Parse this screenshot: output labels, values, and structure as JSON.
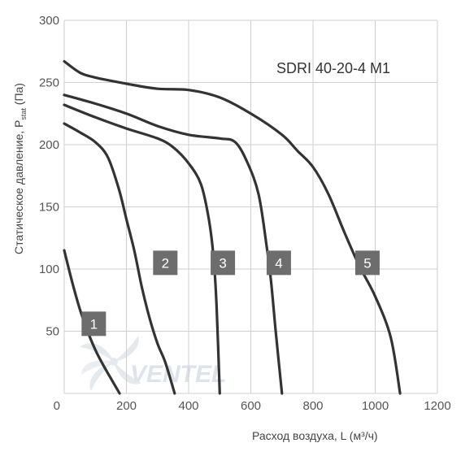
{
  "chart_data": {
    "type": "line",
    "title": "SDRI 40-20-4 M1",
    "xlabel": "Расход воздуха, L (м³/ч)",
    "ylabel": "Статическое давление, P",
    "ylabel_sub": "stat",
    "ylabel_unit": " (Па)",
    "xlim": [
      0,
      1200
    ],
    "ylim": [
      0,
      300
    ],
    "x_ticks": [
      "0",
      "200",
      "400",
      "600",
      "800",
      "1000",
      "1200"
    ],
    "y_ticks": [
      "50",
      "100",
      "150",
      "200",
      "250",
      "300"
    ],
    "grid": true,
    "series": [
      {
        "name": "1",
        "points": [
          [
            0,
            115
          ],
          [
            25,
            90
          ],
          [
            50,
            68
          ],
          [
            75,
            50
          ],
          [
            100,
            35
          ],
          [
            125,
            23
          ],
          [
            150,
            12
          ],
          [
            178,
            0
          ]
        ]
      },
      {
        "name": "2",
        "points": [
          [
            0,
            217
          ],
          [
            50,
            210
          ],
          [
            100,
            202
          ],
          [
            140,
            190
          ],
          [
            175,
            165
          ],
          [
            200,
            140
          ],
          [
            225,
            115
          ],
          [
            250,
            85
          ],
          [
            275,
            60
          ],
          [
            300,
            40
          ],
          [
            325,
            25
          ],
          [
            355,
            0
          ]
        ]
      },
      {
        "name": "3",
        "points": [
          [
            0,
            232
          ],
          [
            100,
            222
          ],
          [
            200,
            213
          ],
          [
            300,
            205
          ],
          [
            350,
            198
          ],
          [
            400,
            185
          ],
          [
            440,
            168
          ],
          [
            465,
            140
          ],
          [
            480,
            110
          ],
          [
            490,
            70
          ],
          [
            500,
            0
          ]
        ]
      },
      {
        "name": "4",
        "points": [
          [
            0,
            240
          ],
          [
            100,
            233
          ],
          [
            200,
            225
          ],
          [
            300,
            215
          ],
          [
            400,
            208
          ],
          [
            500,
            205
          ],
          [
            550,
            202
          ],
          [
            590,
            185
          ],
          [
            625,
            160
          ],
          [
            650,
            120
          ],
          [
            665,
            90
          ],
          [
            680,
            50
          ],
          [
            700,
            0
          ]
        ]
      },
      {
        "name": "5",
        "points": [
          [
            0,
            267
          ],
          [
            50,
            258
          ],
          [
            100,
            254
          ],
          [
            200,
            249
          ],
          [
            300,
            245
          ],
          [
            400,
            244
          ],
          [
            500,
            238
          ],
          [
            600,
            225
          ],
          [
            700,
            208
          ],
          [
            750,
            195
          ],
          [
            800,
            182
          ],
          [
            850,
            160
          ],
          [
            900,
            130
          ],
          [
            950,
            102
          ],
          [
            1000,
            78
          ],
          [
            1050,
            45
          ],
          [
            1080,
            0
          ]
        ]
      }
    ],
    "curve_labels": [
      {
        "text": "1",
        "x": 95,
        "y": 56
      },
      {
        "text": "2",
        "x": 325,
        "y": 105
      },
      {
        "text": "3",
        "x": 510,
        "y": 105
      },
      {
        "text": "4",
        "x": 690,
        "y": 105
      },
      {
        "text": "5",
        "x": 975,
        "y": 105
      }
    ]
  },
  "watermark": "VENTEL",
  "colors": {
    "line": "#333333",
    "grid": "#cfcfcf",
    "badge": "#6d6d6d",
    "watermark": "#dde3ea"
  }
}
